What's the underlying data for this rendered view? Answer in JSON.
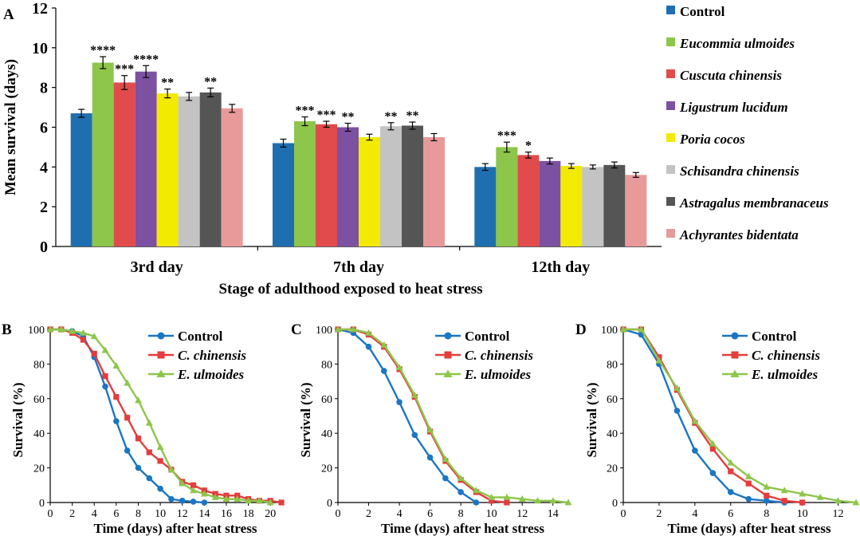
{
  "colors": {
    "control": "#1f6fb0",
    "eucommia": "#8dc64a",
    "cuscuta": "#e14b4b",
    "ligustrum": "#7c51a1",
    "poria": "#f2ea00",
    "schisandra": "#c3c3c3",
    "astragalus": "#555555",
    "achyrantes": "#e89a9a",
    "line_control": "#1b76c3",
    "line_cchinensis": "#e33d3d",
    "line_eulmoides": "#8dc64a"
  },
  "chart_data": [
    {
      "panel": "A",
      "type": "bar",
      "title": "",
      "ylabel": "Mean survival (days)",
      "xlabel": "Stage of adulthood exposed to heat stress",
      "ylim": [
        0,
        12
      ],
      "yticks": [
        "0",
        "2",
        "4",
        "6",
        "8",
        "10",
        "12"
      ],
      "categories": [
        "3rd day",
        "7th day",
        "12th day"
      ],
      "legend_position": "right",
      "series": [
        {
          "name": "Control",
          "color_key": "control",
          "values": [
            6.7,
            5.2,
            4.0
          ],
          "errors": [
            0.2,
            0.2,
            0.17
          ],
          "sig": [
            "",
            "",
            ""
          ]
        },
        {
          "name": "Eucommia ulmoides",
          "color_key": "eucommia",
          "values": [
            9.25,
            6.3,
            5.0
          ],
          "errors": [
            0.3,
            0.22,
            0.25
          ],
          "sig": [
            "****",
            "***",
            "***"
          ]
        },
        {
          "name": "Cuscuta chinensis",
          "color_key": "cuscuta",
          "values": [
            8.25,
            6.15,
            4.6
          ],
          "errors": [
            0.35,
            0.15,
            0.15
          ],
          "sig": [
            "***",
            "***",
            "*"
          ]
        },
        {
          "name": "Ligustrum lucidum",
          "color_key": "ligustrum",
          "values": [
            8.8,
            6.0,
            4.3
          ],
          "errors": [
            0.3,
            0.2,
            0.15
          ],
          "sig": [
            "****",
            "**",
            ""
          ]
        },
        {
          "name": "Poria cocos",
          "color_key": "poria",
          "values": [
            7.7,
            5.5,
            4.05
          ],
          "errors": [
            0.22,
            0.15,
            0.12
          ],
          "sig": [
            "**",
            "",
            ""
          ]
        },
        {
          "name": "Schisandra chinensis",
          "color_key": "schisandra",
          "values": [
            7.55,
            6.05,
            4.0
          ],
          "errors": [
            0.2,
            0.18,
            0.1
          ],
          "sig": [
            "",
            "**",
            ""
          ]
        },
        {
          "name": "Astragalus membranaceus",
          "color_key": "astragalus",
          "values": [
            7.75,
            6.08,
            4.1
          ],
          "errors": [
            0.22,
            0.18,
            0.15
          ],
          "sig": [
            "**",
            "**",
            ""
          ]
        },
        {
          "name": "Achyrantes bidentata",
          "color_key": "achyrantes",
          "values": [
            6.95,
            5.5,
            3.6
          ],
          "errors": [
            0.2,
            0.18,
            0.12
          ],
          "sig": [
            "",
            "",
            ""
          ]
        }
      ]
    },
    {
      "panel": "B",
      "type": "line",
      "xlabel": "Time (days) after heat stress",
      "ylabel": "Survival (%)",
      "xlim": [
        0,
        21
      ],
      "ylim": [
        0,
        100
      ],
      "xticks": [
        0,
        2,
        4,
        6,
        8,
        10,
        12,
        14,
        16,
        18,
        20
      ],
      "yticks": [
        0,
        20,
        40,
        60,
        80,
        100
      ],
      "series": [
        {
          "name": "Control",
          "color_key": "line_control",
          "marker": "circle",
          "x": [
            0,
            1,
            2,
            3,
            4,
            5,
            6,
            7,
            8,
            9,
            10,
            11,
            12,
            13,
            14
          ],
          "y": [
            100,
            100,
            99,
            96,
            84,
            67,
            47,
            30,
            20,
            14,
            8,
            2,
            1,
            0.5,
            0
          ]
        },
        {
          "name": "C. chinensis",
          "color_key": "line_cchinensis",
          "marker": "square",
          "x": [
            0,
            1,
            2,
            3,
            4,
            5,
            6,
            7,
            8,
            9,
            10,
            11,
            12,
            13,
            14,
            15,
            16,
            17,
            18,
            19,
            20,
            21
          ],
          "y": [
            100,
            100,
            98,
            94,
            86,
            73,
            61,
            49,
            37,
            29,
            24,
            19,
            12,
            10,
            7,
            5,
            4,
            4,
            2,
            1,
            1,
            0
          ]
        },
        {
          "name": "E. ulmoides",
          "color_key": "line_eulmoides",
          "marker": "triangle",
          "x": [
            0,
            1,
            2,
            3,
            4,
            5,
            6,
            7,
            8,
            9,
            10,
            11,
            12,
            13,
            14,
            15,
            16,
            17,
            18,
            19,
            20
          ],
          "y": [
            100,
            100,
            99,
            98,
            96,
            88,
            79,
            69,
            59,
            46,
            32,
            19,
            11,
            7,
            5,
            3,
            2,
            2,
            1,
            1,
            0
          ]
        }
      ]
    },
    {
      "panel": "C",
      "type": "line",
      "xlabel": "Time (days) after heat stress",
      "ylabel": "Survival (%)",
      "xlim": [
        0,
        15
      ],
      "ylim": [
        0,
        100
      ],
      "xticks": [
        0,
        2,
        4,
        6,
        8,
        10,
        12,
        14
      ],
      "yticks": [
        0,
        20,
        40,
        60,
        80,
        100
      ],
      "series": [
        {
          "name": "Control",
          "color_key": "line_control",
          "marker": "circle",
          "x": [
            0,
            1,
            2,
            3,
            4,
            5,
            6,
            7,
            8,
            9
          ],
          "y": [
            100,
            98,
            90,
            76,
            58,
            39,
            26,
            14,
            6,
            0
          ]
        },
        {
          "name": "C. chinensis",
          "color_key": "line_cchinensis",
          "marker": "square",
          "x": [
            0,
            1,
            2,
            3,
            4,
            5,
            6,
            7,
            8,
            9,
            10,
            11
          ],
          "y": [
            100,
            100,
            97,
            90,
            77,
            61,
            41,
            24,
            13,
            6,
            1,
            0
          ]
        },
        {
          "name": "E. ulmoides",
          "color_key": "line_eulmoides",
          "marker": "triangle",
          "x": [
            0,
            1,
            2,
            3,
            4,
            5,
            6,
            7,
            8,
            9,
            10,
            11,
            12,
            13,
            14,
            15
          ],
          "y": [
            100,
            100,
            98,
            91,
            78,
            62,
            42,
            25,
            14,
            7,
            3,
            3,
            2,
            1,
            1,
            0
          ]
        }
      ]
    },
    {
      "panel": "D",
      "type": "line",
      "xlabel": "Time (days) after heat stress",
      "ylabel": "Survival (%)",
      "xlim": [
        0,
        13
      ],
      "ylim": [
        0,
        100
      ],
      "xticks": [
        0,
        2,
        4,
        6,
        8,
        10,
        12
      ],
      "yticks": [
        0,
        20,
        40,
        60,
        80,
        100
      ],
      "series": [
        {
          "name": "Control",
          "color_key": "line_control",
          "marker": "circle",
          "x": [
            0,
            1,
            2,
            3,
            4,
            5,
            6,
            7,
            8,
            9
          ],
          "y": [
            100,
            97,
            80,
            53,
            30,
            17,
            6,
            2,
            1,
            0
          ]
        },
        {
          "name": "C. chinensis",
          "color_key": "line_cchinensis",
          "marker": "square",
          "x": [
            0,
            1,
            2,
            3,
            4,
            5,
            6,
            7,
            8,
            9,
            10
          ],
          "y": [
            100,
            100,
            84,
            65,
            46,
            31,
            18,
            11,
            4,
            1,
            0
          ]
        },
        {
          "name": "E. ulmoides",
          "color_key": "line_eulmoides",
          "marker": "triangle",
          "x": [
            0,
            1,
            2,
            3,
            4,
            5,
            6,
            7,
            8,
            9,
            10,
            11,
            12,
            13
          ],
          "y": [
            100,
            100,
            82,
            66,
            47,
            34,
            23,
            15,
            9,
            7,
            5,
            3,
            1,
            0
          ]
        }
      ]
    }
  ]
}
